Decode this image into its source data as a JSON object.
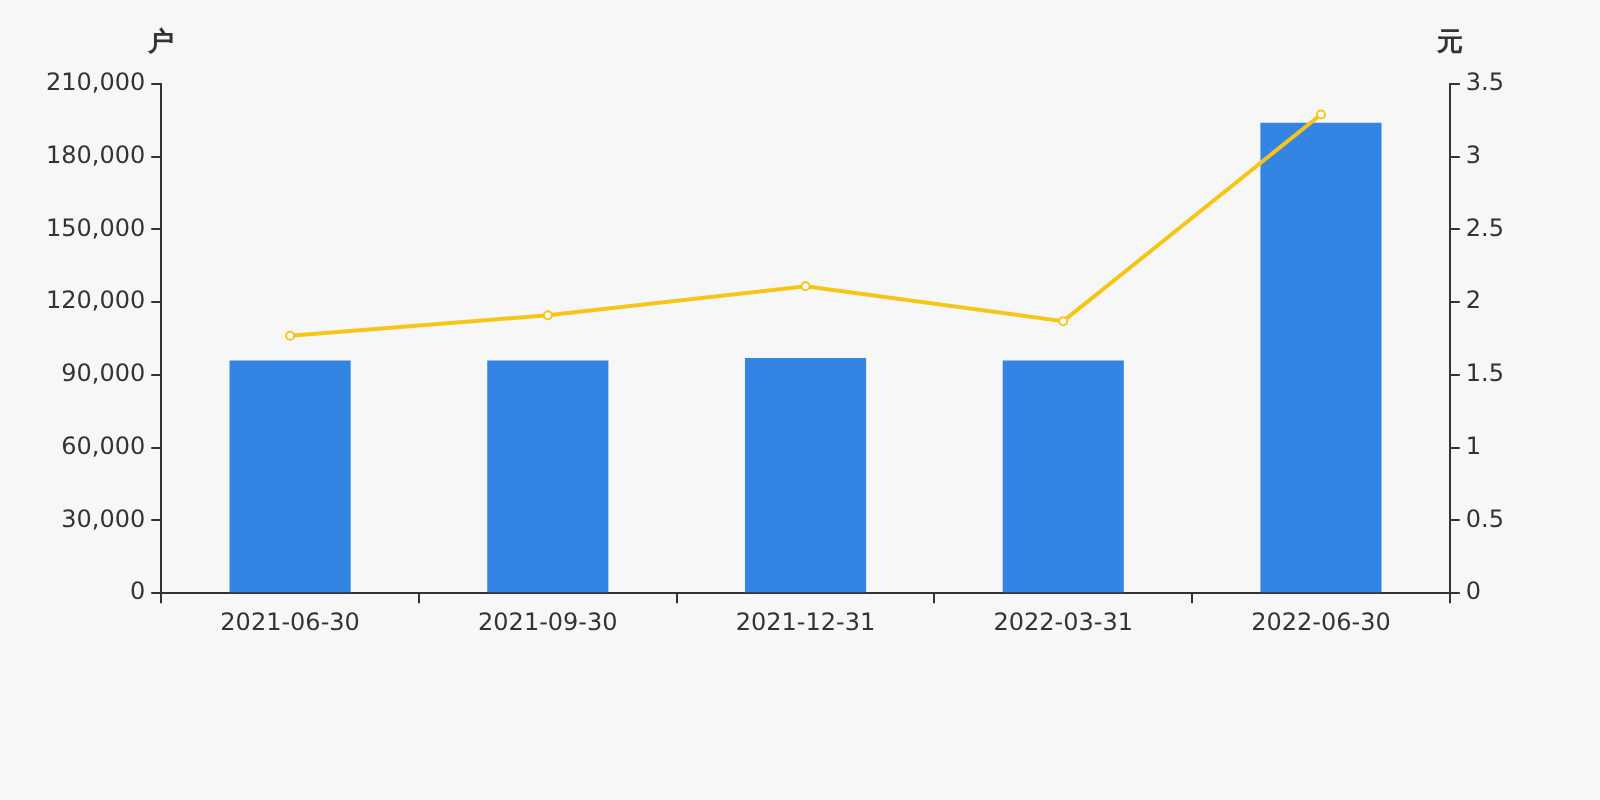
{
  "chart_data": {
    "type": "bar",
    "ylabel": "户",
    "y2label": "元",
    "categories": [
      "2021-06-30",
      "2021-09-30",
      "2021-12-31",
      "2022-03-31",
      "2022-06-30"
    ],
    "series": [
      {
        "color": "#3384e3",
        "values": [
          96000,
          96000,
          97000,
          96000,
          194000
        ]
      },
      {
        "type": "line",
        "axis": "y2",
        "color": "#f5c518",
        "marker": "circle",
        "values": [
          1.77,
          1.91,
          2.11,
          1.87,
          3.29
        ]
      }
    ],
    "ylim": [
      0,
      210000
    ],
    "yticks": [
      0,
      {
        "value": 30000,
        "label": "30,000"
      },
      {
        "value": 60000,
        "label": "60,000"
      },
      {
        "value": 90000,
        "label": "90,000"
      },
      {
        "value": 120000,
        "label": "120,000"
      },
      {
        "value": 150000,
        "label": "150,000"
      },
      {
        "value": 180000,
        "label": "180,000"
      },
      {
        "value": 210000,
        "label": "210,000"
      }
    ],
    "y2lim": [
      0,
      3.5
    ],
    "y2ticks": [
      0,
      0.5,
      1,
      1.5,
      2,
      2.5,
      3,
      3.5
    ],
    "grid": false,
    "legend": false
  }
}
